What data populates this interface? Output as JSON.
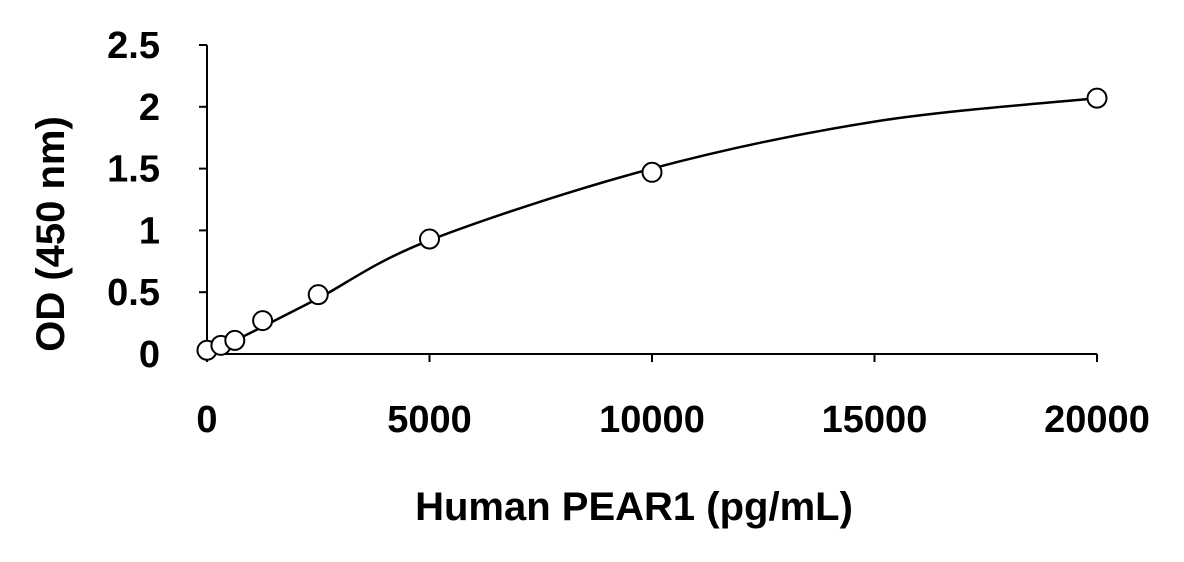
{
  "chart_data": {
    "type": "scatter",
    "title": "",
    "xlabel": "Human PEAR1 (pg/mL)",
    "ylabel": "OD (450 nm)",
    "xlim": [
      0,
      20000
    ],
    "ylim": [
      0,
      2.5
    ],
    "x_ticks": [
      "0",
      "5000",
      "10000",
      "15000",
      "20000"
    ],
    "y_ticks": [
      "0",
      "0.5",
      "1",
      "1.5",
      "2",
      "2.5"
    ],
    "grid": false,
    "legend": "none",
    "marker": "open-circle",
    "trendline": "smooth-fit",
    "series": [
      {
        "x": [
          0,
          312.5,
          625,
          1250,
          2500,
          5000,
          10000,
          20000
        ],
        "y": [
          0.03,
          0.07,
          0.11,
          0.27,
          0.48,
          0.93,
          1.47,
          2.07
        ]
      }
    ],
    "curve": {
      "x": [
        0,
        312.5,
        625,
        1250,
        2500,
        5000,
        10000,
        15000,
        20000
      ],
      "y": [
        0.03,
        0.07,
        0.11,
        0.22,
        0.45,
        0.92,
        1.5,
        1.88,
        2.07
      ]
    },
    "colors": {
      "marker_stroke": "#000000",
      "line": "#000000",
      "axis": "#000000"
    }
  }
}
